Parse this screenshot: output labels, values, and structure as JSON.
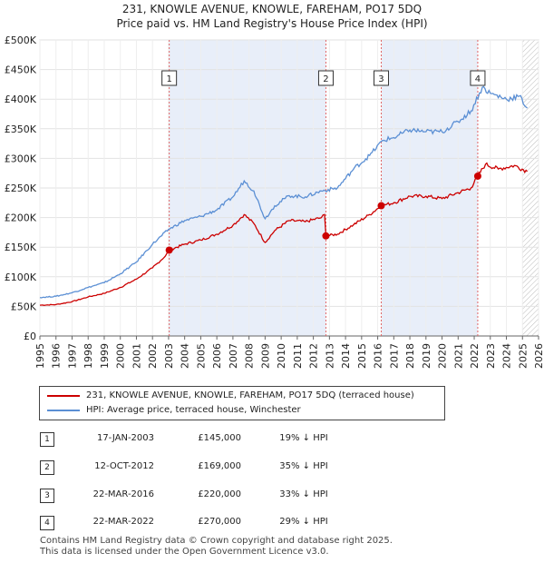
{
  "title_line1": "231, KNOWLE AVENUE, KNOWLE, FAREHAM, PO17 5DQ",
  "title_line2": "Price paid vs. HM Land Registry's House Price Index (HPI)",
  "chart_data": {
    "type": "line",
    "xlim": [
      1995,
      2026
    ],
    "ylim": [
      0,
      500000
    ],
    "y_ticks": [
      {
        "value": 0,
        "label": "£0"
      },
      {
        "value": 50000,
        "label": "£50K"
      },
      {
        "value": 100000,
        "label": "£100K"
      },
      {
        "value": 150000,
        "label": "£150K"
      },
      {
        "value": 200000,
        "label": "£200K"
      },
      {
        "value": 250000,
        "label": "£250K"
      },
      {
        "value": 300000,
        "label": "£300K"
      },
      {
        "value": 350000,
        "label": "£350K"
      },
      {
        "value": 400000,
        "label": "£400K"
      },
      {
        "value": 450000,
        "label": "£450K"
      },
      {
        "value": 500000,
        "label": "£500K"
      }
    ],
    "x_ticks": [
      "1995",
      "1996",
      "1997",
      "1998",
      "1999",
      "2000",
      "2001",
      "2002",
      "2003",
      "2004",
      "2005",
      "2006",
      "2007",
      "2008",
      "2009",
      "2010",
      "2011",
      "2012",
      "2013",
      "2014",
      "2015",
      "2016",
      "2017",
      "2018",
      "2019",
      "2020",
      "2021",
      "2022",
      "2023",
      "2024",
      "2025",
      "2026"
    ],
    "shaded_ranges": [
      [
        2003.04,
        2012.78
      ],
      [
        2016.22,
        2022.22
      ]
    ],
    "hatched_from": 2025.0,
    "sale_markers": [
      {
        "label": "1",
        "x": 2003.04,
        "y": 145000
      },
      {
        "label": "2",
        "x": 2012.78,
        "y": 169000
      },
      {
        "label": "3",
        "x": 2016.22,
        "y": 220000
      },
      {
        "label": "4",
        "x": 2022.22,
        "y": 270000
      }
    ],
    "series": [
      {
        "name": "231, KNOWLE AVENUE, KNOWLE, FAREHAM, PO17 5DQ (terraced house)",
        "color": "#cc0000",
        "points": [
          [
            1995.0,
            52000
          ],
          [
            1996.0,
            53000
          ],
          [
            1997.0,
            58000
          ],
          [
            1998.0,
            66000
          ],
          [
            1999.0,
            72000
          ],
          [
            2000.0,
            82000
          ],
          [
            2001.0,
            96000
          ],
          [
            2002.0,
            115000
          ],
          [
            2002.8,
            135000
          ],
          [
            2003.04,
            145000
          ],
          [
            2004.0,
            155000
          ],
          [
            2005.0,
            162000
          ],
          [
            2006.0,
            172000
          ],
          [
            2007.0,
            187000
          ],
          [
            2007.7,
            205000
          ],
          [
            2008.3,
            190000
          ],
          [
            2009.0,
            158000
          ],
          [
            2009.6,
            178000
          ],
          [
            2010.5,
            195000
          ],
          [
            2011.5,
            193000
          ],
          [
            2012.5,
            200000
          ],
          [
            2012.7,
            205000
          ],
          [
            2012.78,
            169000
          ],
          [
            2013.5,
            172000
          ],
          [
            2014.5,
            188000
          ],
          [
            2015.5,
            205000
          ],
          [
            2016.22,
            220000
          ],
          [
            2017.0,
            225000
          ],
          [
            2018.0,
            236000
          ],
          [
            2019.0,
            236000
          ],
          [
            2020.0,
            232000
          ],
          [
            2021.0,
            242000
          ],
          [
            2021.8,
            250000
          ],
          [
            2022.22,
            270000
          ],
          [
            2022.7,
            290000
          ],
          [
            2023.5,
            282000
          ],
          [
            2024.5,
            288000
          ],
          [
            2025.3,
            278000
          ]
        ]
      },
      {
        "name": "HPI: Average price, terraced house, Winchester",
        "color": "#5b8fd4",
        "points": [
          [
            1995.0,
            65000
          ],
          [
            1996.0,
            67000
          ],
          [
            1997.0,
            73000
          ],
          [
            1998.0,
            82000
          ],
          [
            1999.0,
            90000
          ],
          [
            2000.0,
            105000
          ],
          [
            2001.0,
            125000
          ],
          [
            2002.0,
            155000
          ],
          [
            2003.0,
            180000
          ],
          [
            2004.0,
            195000
          ],
          [
            2005.0,
            202000
          ],
          [
            2006.0,
            213000
          ],
          [
            2007.0,
            235000
          ],
          [
            2007.7,
            262000
          ],
          [
            2008.3,
            245000
          ],
          [
            2009.0,
            198000
          ],
          [
            2009.6,
            220000
          ],
          [
            2010.5,
            237000
          ],
          [
            2011.5,
            235000
          ],
          [
            2012.5,
            245000
          ],
          [
            2013.5,
            250000
          ],
          [
            2014.5,
            282000
          ],
          [
            2015.5,
            305000
          ],
          [
            2016.3,
            330000
          ],
          [
            2017.0,
            335000
          ],
          [
            2018.0,
            348000
          ],
          [
            2019.0,
            345000
          ],
          [
            2020.0,
            345000
          ],
          [
            2021.0,
            362000
          ],
          [
            2021.8,
            380000
          ],
          [
            2022.5,
            420000
          ],
          [
            2023.0,
            410000
          ],
          [
            2024.0,
            400000
          ],
          [
            2024.8,
            405000
          ],
          [
            2025.3,
            385000
          ]
        ]
      }
    ]
  },
  "legend": {
    "property_label": "231, KNOWLE AVENUE, KNOWLE, FAREHAM, PO17 5DQ (terraced house)",
    "hpi_label": "HPI: Average price, terraced house, Winchester"
  },
  "transactions": [
    {
      "num": "1",
      "date": "17-JAN-2003",
      "price": "£145,000",
      "hpi": "19% ↓ HPI"
    },
    {
      "num": "2",
      "date": "12-OCT-2012",
      "price": "£169,000",
      "hpi": "35% ↓ HPI"
    },
    {
      "num": "3",
      "date": "22-MAR-2016",
      "price": "£220,000",
      "hpi": "33% ↓ HPI"
    },
    {
      "num": "4",
      "date": "22-MAR-2022",
      "price": "£270,000",
      "hpi": "29% ↓ HPI"
    }
  ],
  "footer_line1": "Contains HM Land Registry data © Crown copyright and database right 2025.",
  "footer_line2": "This data is licensed under the Open Government Licence v3.0."
}
